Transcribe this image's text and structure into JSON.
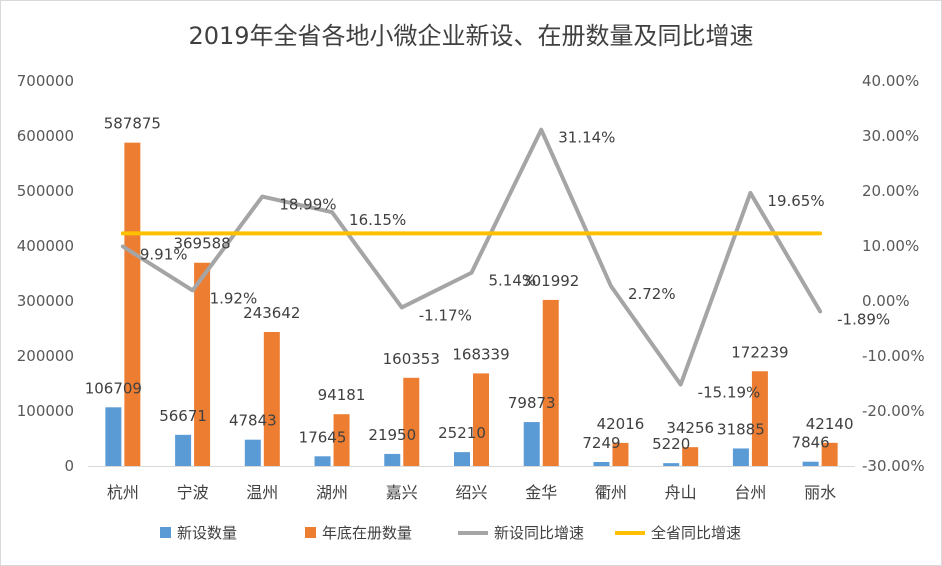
{
  "chart_data": {
    "type": "bar",
    "title": "2019年全省各地小微企业新设、在册数量及同比增速",
    "categories": [
      "杭州",
      "宁波",
      "温州",
      "湖州",
      "嘉兴",
      "绍兴",
      "金华",
      "衢州",
      "舟山",
      "台州",
      "丽水"
    ],
    "series": [
      {
        "name": "新设数量",
        "kind": "bar",
        "axis": "left",
        "color": "#5b9bd5",
        "values": [
          106709,
          56671,
          47843,
          17645,
          21950,
          25210,
          79873,
          7249,
          5220,
          31885,
          7846
        ],
        "labels": [
          "106709",
          "56671",
          "47843",
          "17645",
          "21950",
          "25210",
          "79873",
          "7249",
          "5220",
          "31885",
          "7846"
        ]
      },
      {
        "name": "年底在册数量",
        "kind": "bar",
        "axis": "left",
        "color": "#ed7d31",
        "values": [
          587875,
          369588,
          243642,
          94181,
          160353,
          168339,
          301992,
          42016,
          34256,
          172239,
          42140
        ],
        "labels": [
          "587875",
          "369588",
          "243642",
          "94181",
          "160353",
          "168339",
          "301992",
          "42016",
          "34256",
          "172239",
          "42140"
        ]
      },
      {
        "name": "新设同比增速",
        "kind": "line",
        "axis": "right",
        "color": "#a5a5a5",
        "values": [
          9.91,
          1.92,
          18.99,
          16.15,
          -1.17,
          5.14,
          31.14,
          2.72,
          -15.19,
          19.65,
          -1.89
        ],
        "labels": [
          "9.91%",
          "1.92%",
          "18.99%",
          "16.15%",
          "-1.17%",
          "5.14%",
          "31.14%",
          "2.72%",
          "-15.19%",
          "19.65%",
          "-1.89%"
        ]
      },
      {
        "name": "全省同比增速",
        "kind": "line",
        "axis": "right",
        "color": "#ffc000",
        "values": [
          12.3,
          12.3,
          12.3,
          12.3,
          12.3,
          12.3,
          12.3,
          12.3,
          12.3,
          12.3,
          12.3
        ]
      }
    ],
    "left_axis": {
      "min": 0,
      "max": 700000,
      "step": 100000,
      "tick_labels": [
        "0",
        "100000",
        "200000",
        "300000",
        "400000",
        "500000",
        "600000",
        "700000"
      ]
    },
    "right_axis": {
      "min": -30,
      "max": 40,
      "step": 10,
      "tick_labels": [
        "-30.00%",
        "-20.00%",
        "-10.00%",
        "0.00%",
        "10.00%",
        "20.00%",
        "30.00%",
        "40.00%"
      ]
    },
    "grid": false,
    "legend_position": "bottom"
  }
}
